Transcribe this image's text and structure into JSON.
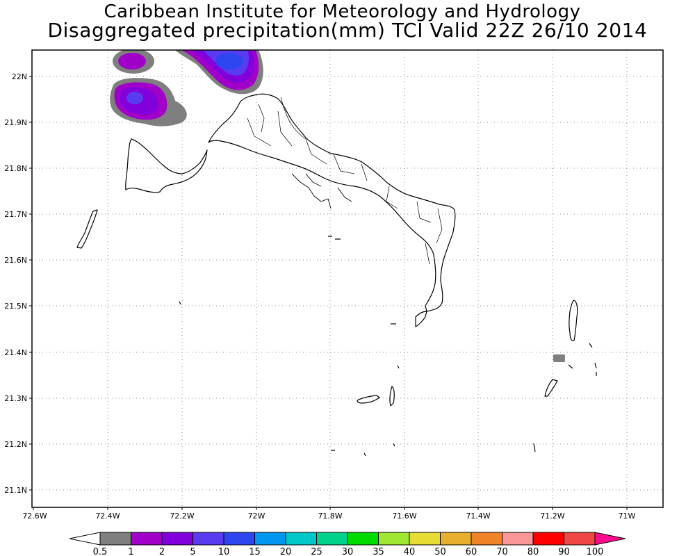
{
  "header": {
    "title_line1": "Caribbean Institute for Meteorology and Hydrology",
    "title_line2": "Disaggregated precipitation(mm) TCI Valid 22Z 26/10 2014"
  },
  "axes": {
    "lon_labels": [
      "72.6W",
      "72.4W",
      "72.2W",
      "72W",
      "71.8W",
      "71.6W",
      "71.4W",
      "71.2W",
      "71W"
    ],
    "lat_labels": [
      "22N",
      "21.9N",
      "21.8N",
      "21.7N",
      "21.6N",
      "21.5N",
      "21.4N",
      "21.3N",
      "21.2N",
      "21.1N"
    ],
    "grid": "dotted"
  },
  "colorbar": {
    "labels": [
      "0.5",
      "1",
      "2",
      "5",
      "10",
      "15",
      "20",
      "25",
      "30",
      "35",
      "40",
      "50",
      "60",
      "70",
      "80",
      "90",
      "100"
    ],
    "colors": [
      "#7f7f7f",
      "#a000c8",
      "#8200dc",
      "#5a3cf0",
      "#2e46f0",
      "#0096f0",
      "#00c8c8",
      "#00d28c",
      "#00dc00",
      "#a0e632",
      "#e6dc32",
      "#e6af2d",
      "#f08228",
      "#fa9696",
      "#ff0000",
      "#f04646",
      "#ff0a8c"
    ],
    "under_color": "#ffffff",
    "over_color": "#ff0a8c"
  },
  "map_features": {
    "land_outline_color": "#000000",
    "precip_cells": [
      {
        "name": "northwest-small-cell",
        "max_level": "2"
      },
      {
        "name": "northwest-cell",
        "max_level": "5"
      },
      {
        "name": "north-central-cell",
        "max_level": "10"
      },
      {
        "name": "east-small-cell",
        "max_level": "0.5"
      }
    ]
  }
}
